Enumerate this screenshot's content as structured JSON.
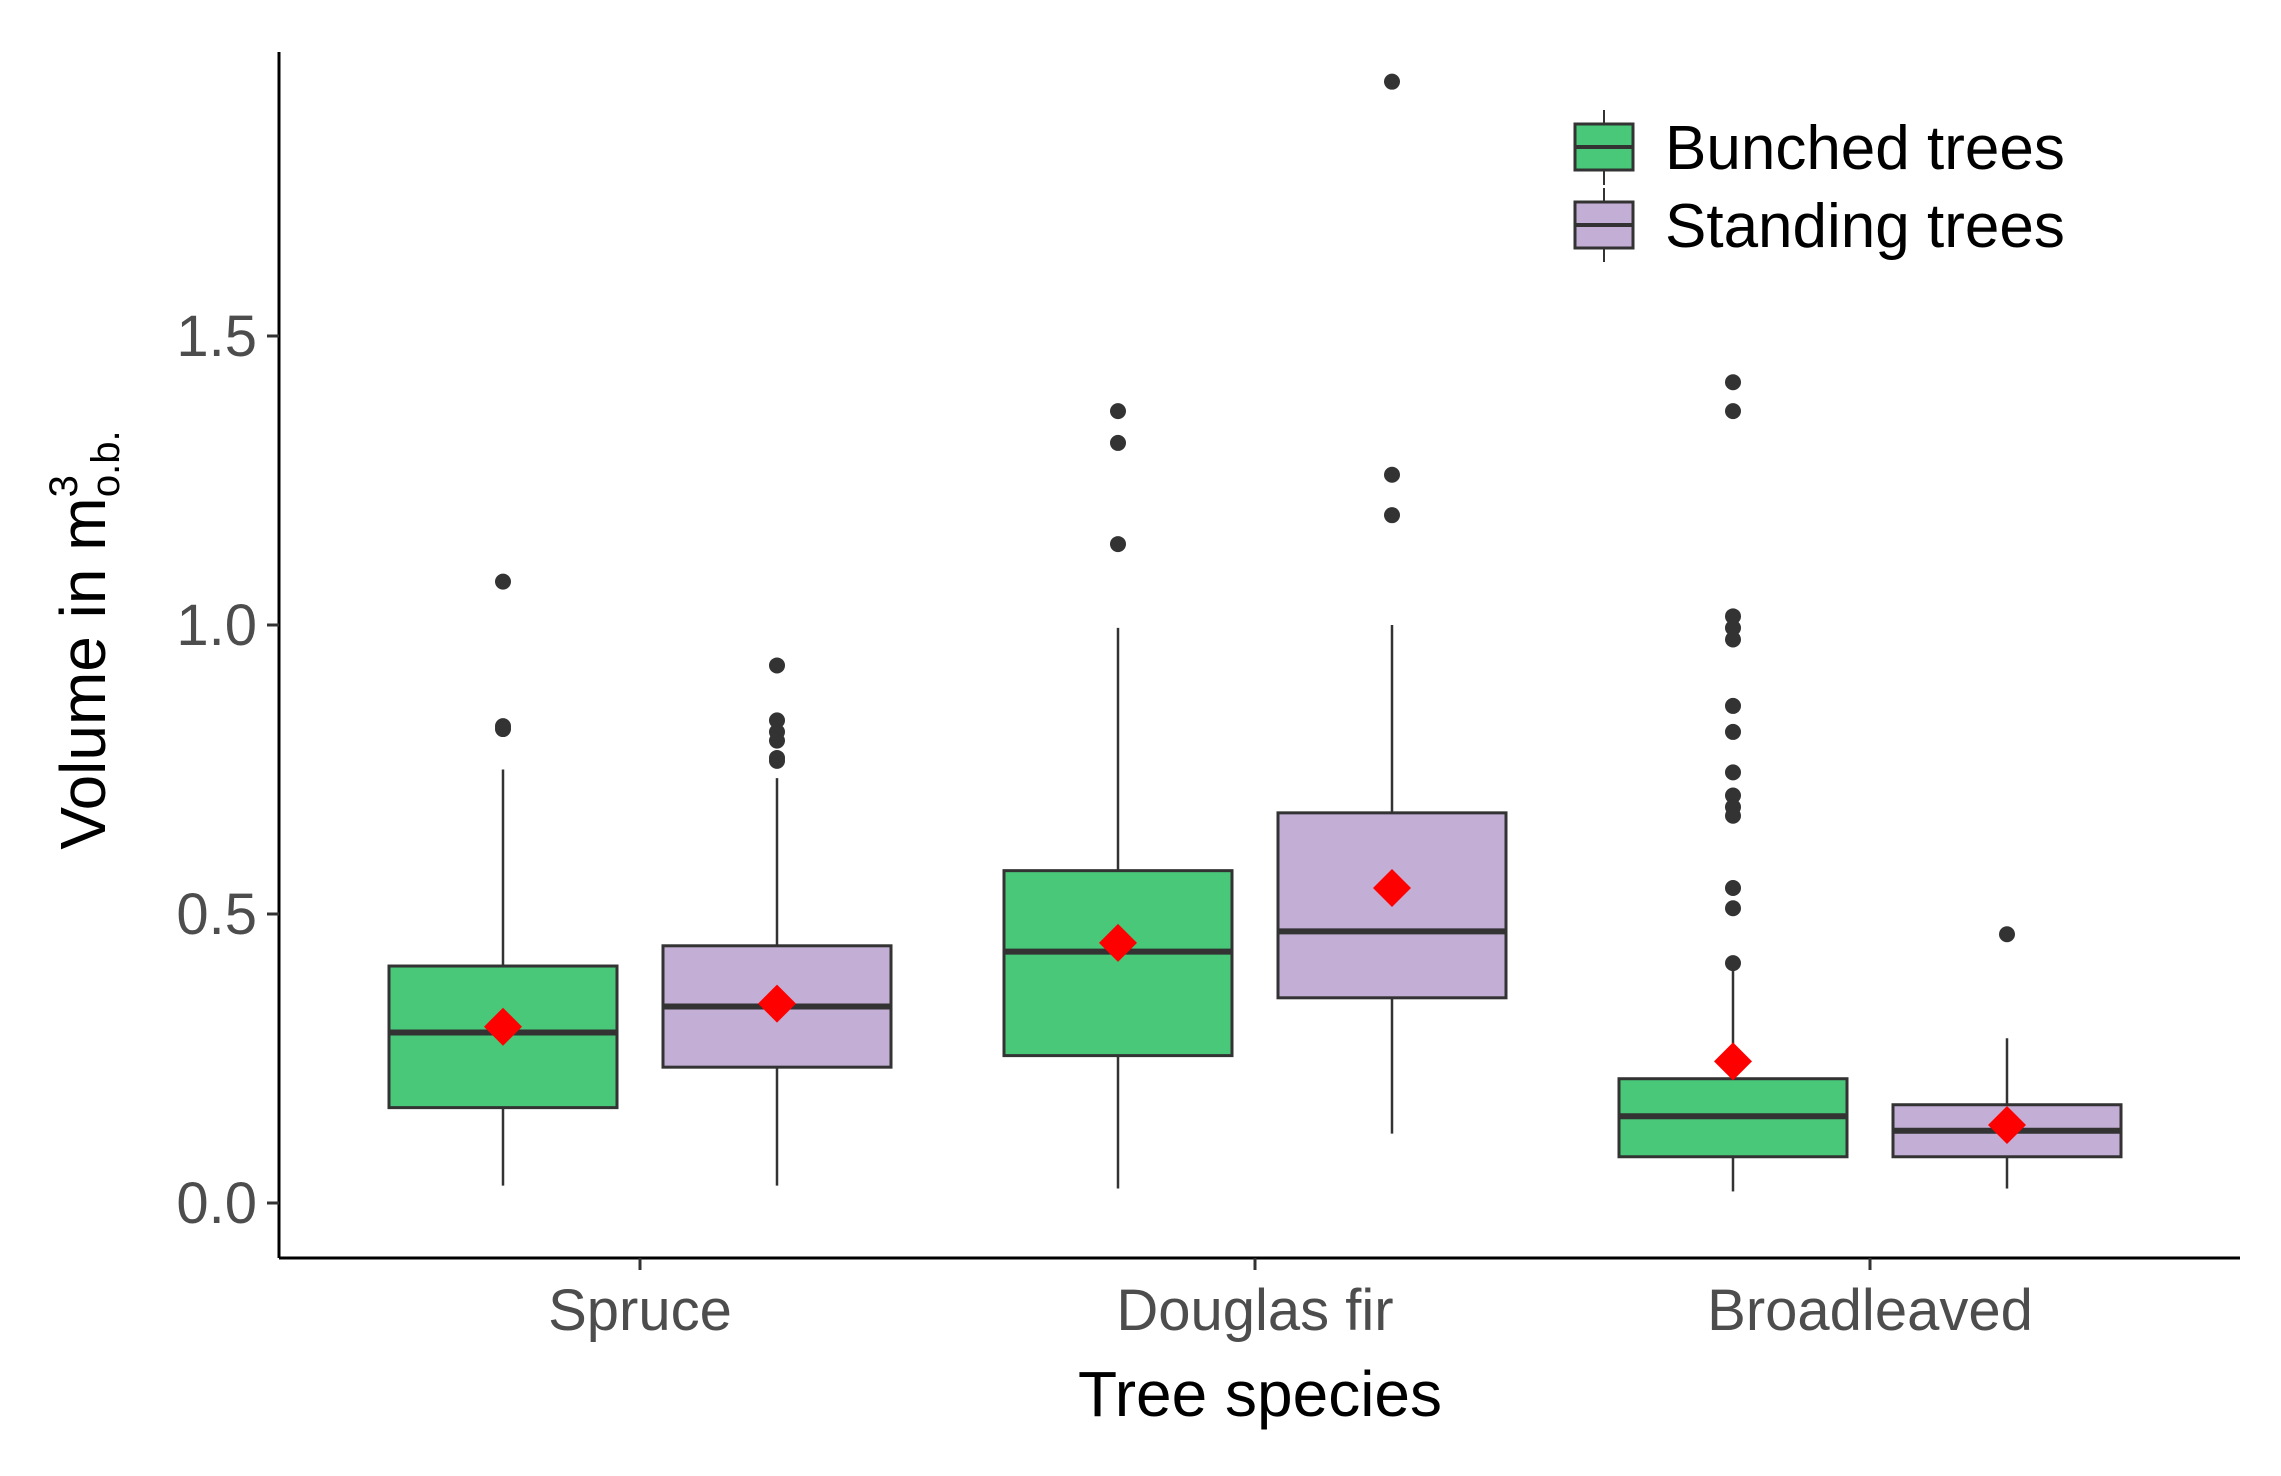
{
  "chart_data": {
    "type": "boxplot",
    "title": "",
    "xlabel": "Tree species",
    "ylabel": {
      "main": "Volume in m",
      "superscript": "3",
      "subscript": "o.b."
    },
    "ylim": [
      -0.09,
      1.99
    ],
    "yticks": [
      0.0,
      0.5,
      1.0,
      1.5
    ],
    "ytick_labels": [
      "0.0",
      "0.5",
      "1.0",
      "1.5"
    ],
    "categories": [
      "Spruce",
      "Douglas fir",
      "Broadleaved"
    ],
    "legend": {
      "position": "top-right",
      "entries": [
        "Bunched trees",
        "Standing trees"
      ]
    },
    "colors": {
      "bunched": "#48c878",
      "standing": "#c3aed6",
      "mean": "#ff0000",
      "outlier": "#333333",
      "line": "#333333"
    },
    "series": [
      {
        "name": "Bunched trees",
        "color": "#48c878",
        "boxes": [
          {
            "category": "Spruce",
            "whisker_low": 0.03,
            "q1": 0.165,
            "median": 0.295,
            "q3": 0.41,
            "whisker_high": 0.75,
            "mean": 0.305,
            "outliers": [
              1.075,
              0.825,
              0.82
            ]
          },
          {
            "category": "Douglas fir",
            "whisker_low": 0.025,
            "q1": 0.255,
            "median": 0.435,
            "q3": 0.575,
            "whisker_high": 0.995,
            "mean": 0.45,
            "outliers": [
              1.37,
              1.315,
              1.14
            ]
          },
          {
            "category": "Broadleaved",
            "whisker_low": 0.02,
            "q1": 0.08,
            "median": 0.15,
            "q3": 0.215,
            "whisker_high": 0.41,
            "mean": 0.245,
            "outliers": [
              1.42,
              1.37,
              1.015,
              0.995,
              0.975,
              0.86,
              0.815,
              0.745,
              0.705,
              0.685,
              0.67,
              0.545,
              0.51,
              0.415
            ]
          }
        ]
      },
      {
        "name": "Standing trees",
        "color": "#c3aed6",
        "boxes": [
          {
            "category": "Spruce",
            "whisker_low": 0.03,
            "q1": 0.235,
            "median": 0.34,
            "q3": 0.445,
            "whisker_high": 0.735,
            "mean": 0.345,
            "outliers": [
              0.93,
              0.835,
              0.815,
              0.8,
              0.77,
              0.765
            ]
          },
          {
            "category": "Douglas fir",
            "whisker_low": 0.12,
            "q1": 0.355,
            "median": 0.47,
            "q3": 0.675,
            "whisker_high": 1.0,
            "mean": 0.545,
            "outliers": [
              1.94,
              1.26,
              1.19
            ]
          },
          {
            "category": "Broadleaved",
            "whisker_low": 0.025,
            "q1": 0.08,
            "median": 0.125,
            "q3": 0.17,
            "whisker_high": 0.285,
            "mean": 0.135,
            "outliers": [
              0.465
            ]
          }
        ]
      }
    ]
  }
}
